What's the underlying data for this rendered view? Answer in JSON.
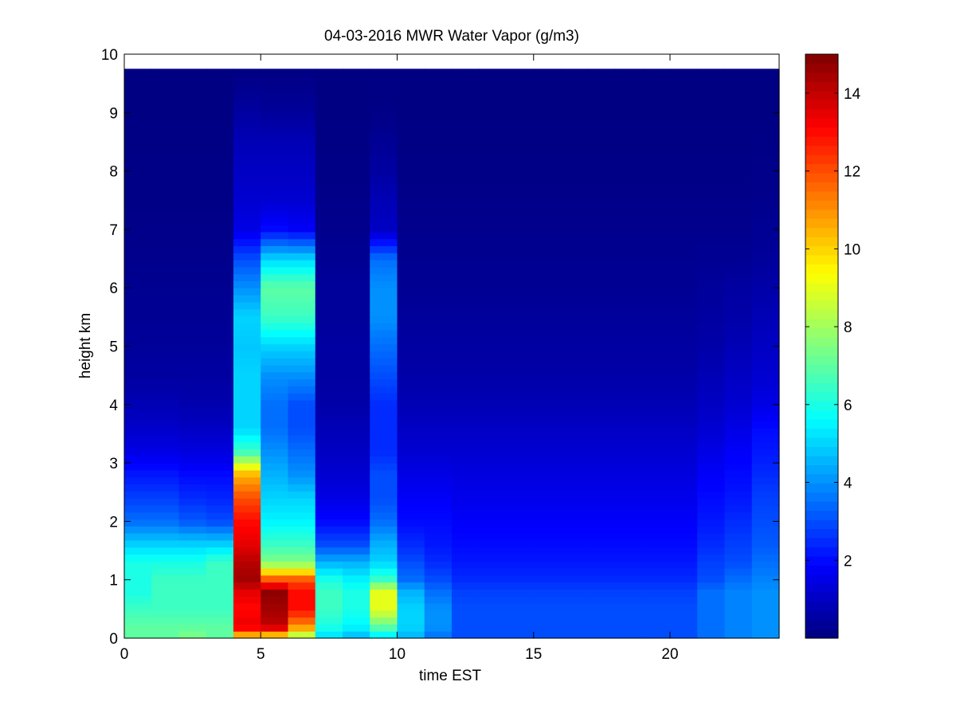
{
  "chart_data": {
    "type": "heatmap",
    "title": "04-03-2016 MWR Water Vapor (g/m3)",
    "xlabel": "time EST",
    "ylabel": "height km",
    "xlim": [
      0,
      24
    ],
    "ylim": [
      0,
      10
    ],
    "x_ticks": [
      "0",
      "5",
      "10",
      "15",
      "20"
    ],
    "y_ticks": [
      "0",
      "1",
      "2",
      "3",
      "4",
      "5",
      "6",
      "7",
      "8",
      "9",
      "10"
    ],
    "colorbar": {
      "colormap": "jet",
      "range": [
        0,
        15
      ],
      "ticks": [
        "2",
        "4",
        "6",
        "8",
        "10",
        "12",
        "14"
      ]
    },
    "time_x": [
      0.5,
      1.5,
      2.5,
      3.5,
      4.5,
      5.5,
      6.5,
      7.5,
      8.5,
      9.5,
      10.5,
      11.5,
      12.5,
      13.5,
      14.5,
      15.5,
      16.5,
      17.5,
      18.5,
      19.5,
      20.5,
      21.5,
      22.5,
      23.5
    ],
    "profile_heights_km": [
      0.0,
      0.2,
      0.5,
      0.8,
      1.0,
      1.3,
      1.6,
      2.0,
      2.4,
      2.8,
      3.2,
      3.6,
      4.0,
      4.5,
      5.0,
      5.5,
      6.0,
      6.5,
      7.0,
      7.5,
      8.0,
      8.5,
      9.0,
      9.75
    ],
    "profiles_g_per_m3": [
      [
        7.0,
        7.0,
        6.5,
        6.0,
        6.0,
        6.0,
        5.0,
        3.5,
        2.8,
        2.2,
        1.5,
        1.1,
        0.8,
        0.5,
        0.4,
        0.3,
        0.25,
        0.2,
        0.15,
        0.1,
        0.1,
        0.08,
        0.05,
        0.05
      ],
      [
        7.0,
        7.0,
        6.5,
        6.5,
        6.5,
        6.0,
        5.0,
        3.5,
        2.8,
        2.2,
        1.5,
        1.1,
        0.8,
        0.5,
        0.4,
        0.3,
        0.25,
        0.2,
        0.15,
        0.1,
        0.1,
        0.08,
        0.05,
        0.05
      ],
      [
        7.5,
        7.0,
        6.5,
        6.5,
        6.5,
        6.0,
        5.0,
        3.2,
        2.5,
        2.0,
        1.4,
        1.0,
        0.7,
        0.5,
        0.4,
        0.3,
        0.25,
        0.2,
        0.15,
        0.1,
        0.1,
        0.08,
        0.05,
        0.05
      ],
      [
        7.0,
        7.0,
        6.5,
        6.5,
        6.5,
        6.5,
        5.0,
        3.0,
        2.4,
        2.0,
        1.4,
        1.0,
        0.7,
        0.5,
        0.4,
        0.3,
        0.25,
        0.2,
        0.15,
        0.1,
        0.1,
        0.08,
        0.05,
        0.05
      ],
      [
        9.5,
        13.5,
        13.0,
        13.5,
        14.5,
        14.2,
        13.5,
        13.0,
        12.0,
        10.5,
        6.5,
        5.0,
        5.0,
        5.0,
        4.8,
        5.0,
        4.0,
        3.0,
        1.5,
        1.2,
        1.0,
        0.8,
        0.5,
        0.05
      ],
      [
        9.0,
        14.0,
        14.5,
        14.8,
        12.0,
        7.5,
        6.5,
        5.5,
        5.0,
        4.5,
        4.0,
        3.5,
        3.5,
        4.0,
        5.0,
        6.5,
        7.0,
        5.0,
        2.0,
        1.2,
        1.0,
        0.8,
        0.4,
        0.05
      ],
      [
        7.5,
        11.0,
        13.0,
        13.0,
        12.0,
        7.5,
        6.5,
        5.5,
        5.0,
        4.0,
        3.5,
        3.0,
        3.0,
        4.0,
        5.0,
        6.5,
        7.0,
        5.0,
        1.8,
        1.2,
        1.0,
        0.8,
        0.4,
        0.05
      ],
      [
        5.0,
        6.0,
        6.5,
        6.5,
        6.0,
        4.5,
        3.0,
        2.0,
        1.5,
        1.2,
        1.0,
        0.8,
        0.6,
        0.5,
        0.5,
        0.4,
        0.4,
        0.3,
        0.2,
        0.15,
        0.1,
        0.08,
        0.05,
        0.05
      ],
      [
        4.5,
        5.5,
        6.0,
        6.0,
        5.5,
        4.5,
        3.0,
        2.0,
        1.5,
        1.2,
        1.0,
        0.8,
        0.6,
        0.5,
        0.5,
        0.4,
        0.4,
        0.3,
        0.2,
        0.15,
        0.1,
        0.08,
        0.05,
        0.05
      ],
      [
        5.0,
        7.0,
        9.0,
        9.0,
        6.5,
        5.0,
        4.5,
        3.5,
        3.0,
        3.0,
        2.5,
        2.5,
        2.5,
        3.0,
        3.5,
        4.0,
        4.0,
        3.5,
        1.0,
        0.8,
        0.5,
        0.3,
        0.1,
        0.05
      ],
      [
        4.5,
        5.0,
        5.0,
        4.5,
        3.5,
        3.0,
        2.5,
        2.0,
        1.8,
        1.5,
        1.2,
        1.0,
        0.8,
        0.6,
        0.5,
        0.4,
        0.3,
        0.25,
        0.2,
        0.15,
        0.1,
        0.08,
        0.05,
        0.05
      ],
      [
        3.5,
        4.0,
        4.0,
        3.5,
        3.0,
        2.5,
        2.2,
        2.0,
        1.8,
        1.5,
        1.2,
        1.0,
        0.8,
        0.6,
        0.5,
        0.4,
        0.3,
        0.25,
        0.2,
        0.15,
        0.1,
        0.08,
        0.05,
        0.05
      ],
      [
        3.0,
        3.0,
        3.0,
        2.8,
        2.5,
        2.2,
        2.0,
        1.8,
        1.6,
        1.4,
        1.2,
        1.0,
        0.8,
        0.6,
        0.5,
        0.4,
        0.3,
        0.25,
        0.2,
        0.15,
        0.1,
        0.08,
        0.05,
        0.05
      ],
      [
        3.0,
        3.0,
        3.0,
        2.8,
        2.5,
        2.2,
        2.0,
        1.8,
        1.6,
        1.4,
        1.2,
        1.0,
        0.8,
        0.6,
        0.5,
        0.4,
        0.3,
        0.25,
        0.2,
        0.15,
        0.1,
        0.08,
        0.05,
        0.05
      ],
      [
        3.0,
        3.0,
        3.0,
        2.8,
        2.5,
        2.2,
        2.0,
        1.8,
        1.6,
        1.4,
        1.2,
        1.0,
        0.8,
        0.6,
        0.5,
        0.4,
        0.3,
        0.25,
        0.2,
        0.15,
        0.1,
        0.08,
        0.05,
        0.05
      ],
      [
        3.0,
        3.0,
        3.0,
        2.8,
        2.5,
        2.2,
        2.0,
        1.8,
        1.6,
        1.4,
        1.2,
        1.0,
        0.8,
        0.6,
        0.5,
        0.4,
        0.3,
        0.25,
        0.2,
        0.15,
        0.1,
        0.08,
        0.05,
        0.05
      ],
      [
        3.0,
        3.0,
        3.0,
        2.8,
        2.5,
        2.2,
        2.0,
        1.8,
        1.6,
        1.4,
        1.2,
        1.0,
        0.8,
        0.6,
        0.5,
        0.4,
        0.3,
        0.25,
        0.2,
        0.15,
        0.1,
        0.08,
        0.05,
        0.05
      ],
      [
        3.0,
        3.0,
        3.0,
        2.8,
        2.5,
        2.2,
        2.0,
        1.8,
        1.6,
        1.4,
        1.2,
        1.0,
        0.8,
        0.6,
        0.5,
        0.4,
        0.3,
        0.25,
        0.2,
        0.15,
        0.1,
        0.08,
        0.05,
        0.05
      ],
      [
        3.0,
        3.0,
        3.0,
        2.8,
        2.5,
        2.2,
        2.0,
        1.8,
        1.6,
        1.4,
        1.2,
        1.0,
        0.8,
        0.6,
        0.5,
        0.4,
        0.3,
        0.25,
        0.2,
        0.15,
        0.1,
        0.08,
        0.05,
        0.05
      ],
      [
        3.0,
        3.0,
        3.0,
        2.8,
        2.5,
        2.2,
        2.0,
        1.8,
        1.6,
        1.4,
        1.2,
        1.0,
        0.8,
        0.6,
        0.5,
        0.4,
        0.3,
        0.25,
        0.2,
        0.15,
        0.1,
        0.08,
        0.05,
        0.05
      ],
      [
        3.0,
        3.0,
        3.0,
        2.8,
        2.5,
        2.2,
        2.0,
        1.8,
        1.6,
        1.4,
        1.2,
        1.0,
        0.8,
        0.6,
        0.5,
        0.4,
        0.3,
        0.25,
        0.2,
        0.15,
        0.1,
        0.08,
        0.05,
        0.05
      ],
      [
        3.5,
        3.5,
        3.5,
        3.5,
        3.0,
        2.8,
        2.5,
        2.2,
        2.0,
        1.8,
        1.5,
        1.2,
        1.0,
        0.8,
        0.6,
        0.5,
        0.4,
        0.3,
        0.2,
        0.15,
        0.1,
        0.08,
        0.05,
        0.05
      ],
      [
        3.8,
        3.8,
        3.8,
        3.8,
        3.5,
        3.0,
        2.8,
        2.5,
        2.2,
        2.0,
        1.8,
        1.5,
        1.2,
        1.0,
        0.8,
        0.6,
        0.5,
        0.3,
        0.2,
        0.15,
        0.1,
        0.08,
        0.05,
        0.05
      ],
      [
        4.0,
        4.0,
        4.0,
        4.0,
        3.8,
        3.5,
        3.2,
        3.0,
        2.8,
        2.5,
        2.2,
        2.0,
        1.5,
        1.2,
        1.0,
        0.8,
        0.6,
        0.4,
        0.3,
        0.2,
        0.15,
        0.1,
        0.05,
        0.05
      ]
    ]
  }
}
